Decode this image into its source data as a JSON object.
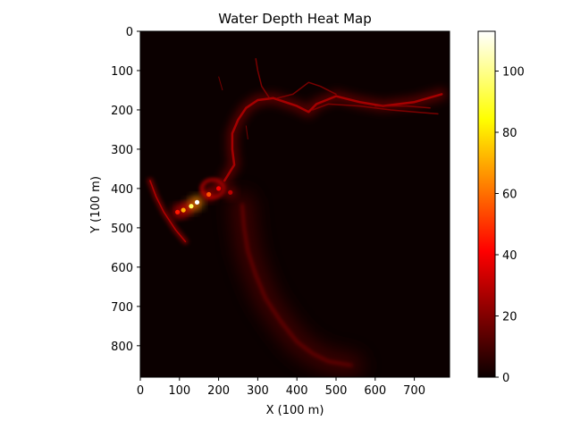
{
  "chart_data": {
    "type": "heatmap",
    "title": "Water Depth Heat Map",
    "xlabel": "X (100 m)",
    "ylabel": "Y (100 m)",
    "xlim": [
      0,
      790
    ],
    "ylim": [
      880,
      0
    ],
    "xticks": [
      0,
      100,
      200,
      300,
      400,
      500,
      600,
      700
    ],
    "yticks": [
      0,
      100,
      200,
      300,
      400,
      500,
      600,
      700,
      800
    ],
    "colormap": "hot",
    "background_value": 0,
    "colorbar": {
      "range": [
        0,
        113
      ],
      "ticks": [
        0,
        20,
        40,
        60,
        80,
        100
      ]
    },
    "features": {
      "river_channel": [
        [
          770,
          160
        ],
        [
          700,
          180
        ],
        [
          620,
          190
        ],
        [
          560,
          180
        ],
        [
          500,
          165
        ],
        [
          450,
          185
        ],
        [
          430,
          205
        ],
        [
          400,
          190
        ],
        [
          340,
          170
        ],
        [
          300,
          175
        ],
        [
          270,
          195
        ],
        [
          250,
          225
        ],
        [
          235,
          260
        ],
        [
          235,
          300
        ],
        [
          240,
          340
        ],
        [
          215,
          380
        ]
      ],
      "side_channels": [
        [
          [
            760,
            210
          ],
          [
            700,
            205
          ],
          [
            640,
            200
          ],
          [
            560,
            190
          ],
          [
            480,
            185
          ],
          [
            440,
            200
          ]
        ],
        [
          [
            740,
            195
          ],
          [
            680,
            190
          ],
          [
            600,
            190
          ]
        ],
        [
          [
            500,
            160
          ],
          [
            460,
            140
          ],
          [
            430,
            130
          ],
          [
            390,
            160
          ],
          [
            350,
            170
          ]
        ],
        [
          [
            330,
            170
          ],
          [
            310,
            140
          ],
          [
            300,
            100
          ],
          [
            295,
            70
          ]
        ]
      ],
      "lower_channel": [
        [
          260,
          440
        ],
        [
          265,
          500
        ],
        [
          275,
          560
        ],
        [
          295,
          620
        ],
        [
          320,
          680
        ],
        [
          360,
          740
        ],
        [
          400,
          790
        ],
        [
          440,
          820
        ],
        [
          480,
          840
        ],
        [
          540,
          850
        ]
      ],
      "upper_channel_branches": [
        [
          [
            270,
            240
          ],
          [
            275,
            275
          ]
        ],
        [
          [
            210,
            150
          ],
          [
            200,
            115
          ]
        ]
      ],
      "coast_strip": [
        [
          25,
          380
        ],
        [
          40,
          420
        ],
        [
          60,
          460
        ],
        [
          90,
          505
        ],
        [
          115,
          535
        ]
      ],
      "hotspots": [
        {
          "x": 145,
          "y": 435,
          "value": 113
        },
        {
          "x": 130,
          "y": 445,
          "value": 95
        },
        {
          "x": 110,
          "y": 455,
          "value": 70
        },
        {
          "x": 175,
          "y": 415,
          "value": 55
        },
        {
          "x": 95,
          "y": 460,
          "value": 45
        },
        {
          "x": 200,
          "y": 400,
          "value": 40
        },
        {
          "x": 230,
          "y": 410,
          "value": 30
        }
      ],
      "ring": {
        "x": 185,
        "y": 400,
        "rx": 28,
        "ry": 22,
        "value": 35
      }
    }
  }
}
